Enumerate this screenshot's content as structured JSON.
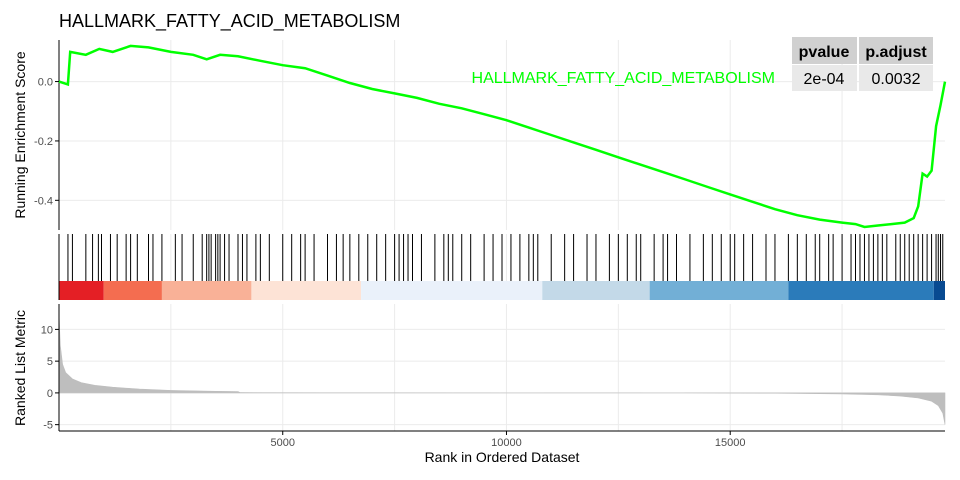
{
  "chart_data": {
    "type": "line",
    "title": "HALLMARK_FATTY_ACID_METABOLISM",
    "xlabel": "Rank in Ordered Dataset",
    "xlim": [
      0,
      19800
    ],
    "x_ticks": [
      5000,
      10000,
      15000
    ],
    "running_es": {
      "ylabel": "Running Enrichment Score",
      "ylim": [
        -0.5,
        0.14
      ],
      "y_ticks": [
        0.0,
        -0.2,
        -0.4
      ],
      "series": [
        {
          "name": "HALLMARK_FATTY_ACID_METABOLISM",
          "color": "#00ff00",
          "x": [
            0,
            200,
            250,
            600,
            900,
            1200,
            1600,
            2000,
            2500,
            3000,
            3300,
            3600,
            4000,
            4500,
            5000,
            5500,
            6000,
            6500,
            7000,
            7500,
            8000,
            8500,
            9000,
            9500,
            10000,
            10500,
            11000,
            11500,
            12000,
            12500,
            13000,
            13500,
            14000,
            14500,
            15000,
            15500,
            16000,
            16500,
            17000,
            17500,
            17800,
            18000,
            18300,
            18600,
            18900,
            19100,
            19200,
            19300,
            19400,
            19500,
            19600,
            19700,
            19800
          ],
          "y": [
            0.0,
            -0.01,
            0.1,
            0.09,
            0.11,
            0.1,
            0.12,
            0.115,
            0.1,
            0.09,
            0.075,
            0.09,
            0.085,
            0.07,
            0.055,
            0.045,
            0.02,
            -0.005,
            -0.025,
            -0.04,
            -0.055,
            -0.075,
            -0.09,
            -0.11,
            -0.13,
            -0.155,
            -0.18,
            -0.205,
            -0.23,
            -0.255,
            -0.28,
            -0.305,
            -0.33,
            -0.355,
            -0.38,
            -0.405,
            -0.43,
            -0.45,
            -0.465,
            -0.475,
            -0.48,
            -0.49,
            -0.485,
            -0.48,
            -0.475,
            -0.46,
            -0.42,
            -0.31,
            -0.32,
            -0.3,
            -0.15,
            -0.08,
            0.0
          ]
        }
      ]
    },
    "hits": [
      200,
      300,
      600,
      750,
      880,
      950,
      1150,
      1300,
      1500,
      1600,
      1750,
      2000,
      2100,
      2300,
      2600,
      2750,
      3000,
      3200,
      3300,
      3350,
      3400,
      3500,
      3550,
      3600,
      3700,
      3800,
      4000,
      4100,
      4200,
      4400,
      4500,
      4700,
      5000,
      5200,
      5400,
      5500,
      5700,
      6000,
      6200,
      6350,
      6500,
      6700,
      6900,
      7100,
      7300,
      7500,
      7600,
      7700,
      7800,
      7900,
      8100,
      8400,
      8600,
      8700,
      8800,
      9000,
      9200,
      9500,
      9700,
      9900,
      10100,
      10300,
      10500,
      10600,
      10700,
      11000,
      11300,
      11500,
      11800,
      12000,
      12300,
      12500,
      12700,
      12900,
      13000,
      13300,
      13500,
      13600,
      13800,
      14100,
      14400,
      14600,
      14800,
      15000,
      15100,
      15300,
      15500,
      15800,
      16000,
      16300,
      16500,
      16700,
      16900,
      17000,
      17200,
      17300,
      17500,
      17700,
      17800,
      17900,
      18000,
      18100,
      18200,
      18300,
      18400,
      18500,
      18700,
      18800,
      18900,
      19000,
      19100,
      19200,
      19300,
      19400,
      19500,
      19600,
      19650,
      19700,
      19750
    ],
    "rank_color_bands": [
      {
        "from": 0,
        "to": 1000,
        "color": "#e41f25"
      },
      {
        "from": 1000,
        "to": 2300,
        "color": "#f46d50"
      },
      {
        "from": 2300,
        "to": 4300,
        "color": "#f9b197"
      },
      {
        "from": 4300,
        "to": 6750,
        "color": "#fde3d6"
      },
      {
        "from": 6750,
        "to": 10800,
        "color": "#eaf1fa"
      },
      {
        "from": 10800,
        "to": 13200,
        "color": "#c3d9e8"
      },
      {
        "from": 13200,
        "to": 16300,
        "color": "#72afd6"
      },
      {
        "from": 16300,
        "to": 19550,
        "color": "#2b7bba"
      },
      {
        "from": 19550,
        "to": 19800,
        "color": "#084a91"
      }
    ],
    "ranked_metric": {
      "ylabel": "Ranked List Metric",
      "ylim": [
        -6,
        14
      ],
      "y_ticks": [
        10,
        5,
        0,
        -5
      ],
      "fill_color": "#bebebe",
      "x": [
        0,
        30,
        80,
        150,
        300,
        500,
        800,
        1200,
        1800,
        2500,
        3500,
        4000,
        4050,
        6000,
        10000,
        13000,
        13050,
        13950,
        14000,
        16000,
        17500,
        18300,
        18800,
        19200,
        19500,
        19650,
        19750,
        19800
      ],
      "y": [
        12.5,
        7.5,
        4.5,
        3.2,
        2.2,
        1.6,
        1.2,
        0.9,
        0.6,
        0.4,
        0.25,
        0.2,
        0.05,
        0.02,
        0.0,
        -0.02,
        0.0,
        0.0,
        -0.02,
        -0.05,
        -0.15,
        -0.3,
        -0.5,
        -0.8,
        -1.3,
        -2.0,
        -3.2,
        -5.0
      ]
    },
    "stats_table": {
      "headers": [
        "pvalue",
        "p.adjust"
      ],
      "row_label": "HALLMARK_FATTY_ACID_METABOLISM",
      "values": [
        "2e-04",
        "0.0032"
      ]
    }
  }
}
